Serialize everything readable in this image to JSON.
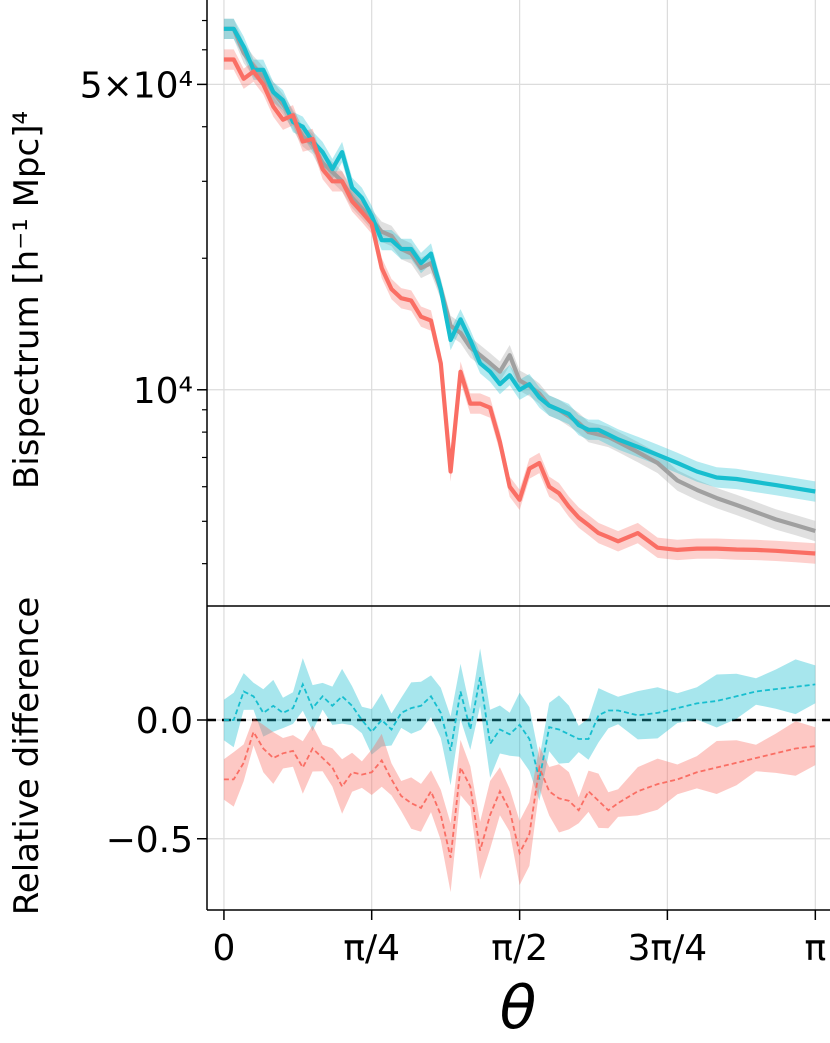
{
  "chart_data": [
    {
      "type": "line",
      "panel": "top",
      "ylabel": "Bispectrum [h⁻¹ Mpc]⁴",
      "yscale": "log",
      "ylim": [
        3200,
        78000
      ],
      "xlim": [
        -0.09,
        3.22
      ],
      "grid": true,
      "ytick_labels": [
        {
          "value": 50000,
          "label": "5×10⁴"
        },
        {
          "value": 10000,
          "label": "10⁴"
        }
      ],
      "x": [
        0.0,
        0.052,
        0.105,
        0.157,
        0.209,
        0.262,
        0.314,
        0.367,
        0.419,
        0.471,
        0.524,
        0.576,
        0.628,
        0.681,
        0.733,
        0.785,
        0.838,
        0.89,
        0.942,
        0.995,
        1.047,
        1.1,
        1.152,
        1.204,
        1.257,
        1.309,
        1.361,
        1.414,
        1.466,
        1.518,
        1.571,
        1.623,
        1.676,
        1.728,
        1.78,
        1.833,
        1.885,
        1.937,
        1.99,
        2.042,
        2.094,
        2.199,
        2.304,
        2.409,
        2.513,
        2.618,
        2.723,
        2.827,
        2.932,
        3.037,
        3.142
      ],
      "series": [
        {
          "color": "#a0a0a0",
          "values": [
            67000,
            67000,
            59000,
            55000,
            52000,
            48000,
            45000,
            41500,
            38000,
            36500,
            33000,
            31500,
            30000,
            27500,
            26000,
            24500,
            23000,
            22500,
            21000,
            20500,
            19000,
            19500,
            17000,
            14000,
            13500,
            12500,
            12000,
            11500,
            11000,
            12000,
            10500,
            10200,
            9800,
            9200,
            9000,
            8700,
            8400,
            8000,
            7900,
            7800,
            7600,
            7200,
            6800,
            6200,
            5900,
            5650,
            5450,
            5250,
            5050,
            4900,
            4750
          ]
        },
        {
          "color": "#17becf",
          "values": [
            67000,
            67000,
            61000,
            54000,
            54000,
            48000,
            46000,
            41000,
            40000,
            37000,
            35000,
            32000,
            35000,
            29000,
            27500,
            25000,
            22000,
            22000,
            21000,
            21000,
            19500,
            20500,
            17000,
            13000,
            14500,
            13000,
            11500,
            11000,
            10300,
            10800,
            10000,
            10300,
            9600,
            9200,
            9000,
            8800,
            8300,
            8100,
            8100,
            7900,
            7700,
            7400,
            7100,
            6800,
            6500,
            6300,
            6250,
            6150,
            6050,
            5950,
            5850
          ]
        },
        {
          "color": "#fa6e64",
          "values": [
            57000,
            57000,
            51500,
            53500,
            50000,
            44500,
            41500,
            42500,
            37000,
            37500,
            32000,
            30000,
            30000,
            27000,
            25500,
            24000,
            19000,
            17000,
            16200,
            16000,
            14700,
            14400,
            11500,
            6500,
            11000,
            9300,
            9300,
            9100,
            7600,
            6000,
            5600,
            6600,
            6800,
            6000,
            5800,
            5400,
            5100,
            4900,
            4700,
            4600,
            4500,
            4700,
            4350,
            4300,
            4330,
            4330,
            4310,
            4300,
            4280,
            4250,
            4220
          ]
        }
      ]
    },
    {
      "type": "line",
      "panel": "bottom",
      "xlabel": "θ",
      "ylabel": "Relative difference",
      "ylim": [
        -0.8,
        0.48
      ],
      "xlim": [
        -0.09,
        3.22
      ],
      "grid": true,
      "reference_line": 0.0,
      "ytick_labels": [
        {
          "value": 0.0,
          "label": "0.0"
        },
        {
          "value": -0.5,
          "label": "−0.5"
        }
      ],
      "xtick_labels": [
        {
          "value": 0.0,
          "label": "0"
        },
        {
          "value": 0.785,
          "label": "π/4"
        },
        {
          "value": 1.571,
          "label": "π/2"
        },
        {
          "value": 2.356,
          "label": "3π/4"
        },
        {
          "value": 3.142,
          "label": "π"
        }
      ],
      "x": [
        0.0,
        0.052,
        0.105,
        0.157,
        0.209,
        0.262,
        0.314,
        0.367,
        0.419,
        0.471,
        0.524,
        0.576,
        0.628,
        0.681,
        0.733,
        0.785,
        0.838,
        0.89,
        0.942,
        0.995,
        1.047,
        1.1,
        1.152,
        1.204,
        1.257,
        1.309,
        1.361,
        1.414,
        1.466,
        1.518,
        1.571,
        1.623,
        1.676,
        1.728,
        1.78,
        1.833,
        1.885,
        1.937,
        1.99,
        2.042,
        2.094,
        2.199,
        2.304,
        2.409,
        2.513,
        2.618,
        2.723,
        2.827,
        2.932,
        3.037,
        3.142
      ],
      "series": [
        {
          "color": "#17becf",
          "values": [
            0.0,
            0.0,
            0.12,
            0.1,
            0.03,
            0.06,
            0.03,
            0.05,
            0.15,
            0.05,
            0.1,
            0.06,
            0.1,
            0.06,
            0.0,
            -0.05,
            0.0,
            -0.04,
            0.03,
            0.05,
            0.06,
            0.1,
            0.03,
            -0.13,
            0.12,
            -0.04,
            0.18,
            -0.1,
            -0.04,
            -0.06,
            -0.02,
            -0.08,
            -0.25,
            -0.03,
            -0.04,
            -0.06,
            -0.08,
            -0.08,
            0.02,
            0.04,
            0.04,
            0.02,
            0.03,
            0.05,
            0.07,
            0.08,
            0.1,
            0.12,
            0.13,
            0.14,
            0.15
          ]
        },
        {
          "color": "#fa6e64",
          "values": [
            -0.25,
            -0.25,
            -0.18,
            -0.05,
            -0.12,
            -0.16,
            -0.14,
            -0.13,
            -0.2,
            -0.12,
            -0.16,
            -0.2,
            -0.28,
            -0.22,
            -0.23,
            -0.22,
            -0.17,
            -0.25,
            -0.32,
            -0.35,
            -0.37,
            -0.3,
            -0.4,
            -0.58,
            -0.2,
            -0.28,
            -0.55,
            -0.4,
            -0.3,
            -0.38,
            -0.56,
            -0.48,
            -0.2,
            -0.3,
            -0.33,
            -0.34,
            -0.38,
            -0.3,
            -0.34,
            -0.38,
            -0.35,
            -0.3,
            -0.27,
            -0.25,
            -0.22,
            -0.2,
            -0.18,
            -0.16,
            -0.14,
            -0.12,
            -0.11
          ]
        }
      ]
    }
  ]
}
